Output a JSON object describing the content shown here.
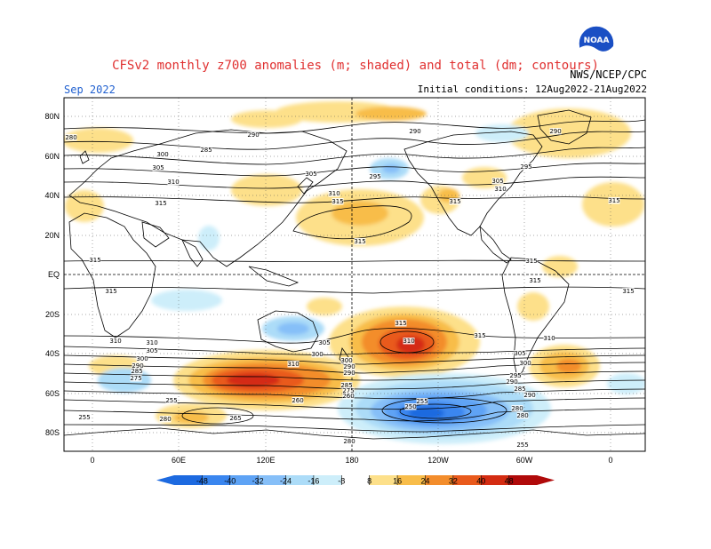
{
  "header": {
    "title": "CFSv2 monthly z700 anomalies (m; shaded) and total (dm; contours)",
    "month": "Sep 2022",
    "agency": "NWS/NCEP/CPC",
    "initial_conditions": "Initial conditions: 12Aug2022-21Aug2022",
    "logo_text": "NOAA"
  },
  "axes": {
    "lat_labels": [
      "80N",
      "60N",
      "40N",
      "20N",
      "EQ",
      "20S",
      "40S",
      "60S",
      "80S"
    ],
    "lon_labels": [
      "0",
      "60E",
      "120E",
      "180",
      "120W",
      "60W",
      "0"
    ]
  },
  "colorbar": {
    "ticks": [
      "-48",
      "-40",
      "-32",
      "-24",
      "-16",
      "-8",
      "8",
      "16",
      "24",
      "32",
      "40",
      "48"
    ],
    "colors": [
      "#1d6ae0",
      "#3a86ef",
      "#5ea3f5",
      "#86bff8",
      "#acdcf8",
      "#cdeefa",
      "#ffffff",
      "#fde08a",
      "#f8bd4a",
      "#f38d2c",
      "#e95a1c",
      "#d42c12",
      "#b00a0a"
    ]
  },
  "contour_labels": [
    {
      "text": "290"
    },
    {
      "text": "285"
    },
    {
      "text": "300"
    },
    {
      "text": "305"
    },
    {
      "text": "310"
    },
    {
      "text": "315"
    },
    {
      "text": "315"
    },
    {
      "text": "315"
    },
    {
      "text": "315"
    },
    {
      "text": "315"
    },
    {
      "text": "290"
    },
    {
      "text": "295"
    },
    {
      "text": "305"
    },
    {
      "text": "310"
    },
    {
      "text": "315"
    },
    {
      "text": "290"
    },
    {
      "text": "295"
    },
    {
      "text": "305"
    },
    {
      "text": "310"
    },
    {
      "text": "315"
    },
    {
      "text": "315"
    },
    {
      "text": "315"
    },
    {
      "text": "315"
    },
    {
      "text": "310"
    },
    {
      "text": "315"
    },
    {
      "text": "310"
    },
    {
      "text": "305"
    },
    {
      "text": "300"
    },
    {
      "text": "290"
    },
    {
      "text": "285"
    },
    {
      "text": "275"
    },
    {
      "text": "305"
    },
    {
      "text": "300"
    },
    {
      "text": "295"
    },
    {
      "text": "290"
    },
    {
      "text": "285"
    },
    {
      "text": "280"
    },
    {
      "text": "260"
    },
    {
      "text": "255"
    },
    {
      "text": "265"
    },
    {
      "text": "280"
    },
    {
      "text": "255"
    },
    {
      "text": "250"
    },
    {
      "text": "255"
    },
    {
      "text": "280"
    },
    {
      "text": "255"
    },
    {
      "text": "310"
    },
    {
      "text": "305"
    },
    {
      "text": "300"
    },
    {
      "text": "290"
    },
    {
      "text": "285"
    },
    {
      "text": "275"
    },
    {
      "text": "260"
    },
    {
      "text": "310"
    },
    {
      "text": "280"
    },
    {
      "text": "290"
    },
    {
      "text": "300"
    },
    {
      "text": "315"
    },
    {
      "text": "310"
    },
    {
      "text": "290"
    },
    {
      "text": "280"
    }
  ]
}
